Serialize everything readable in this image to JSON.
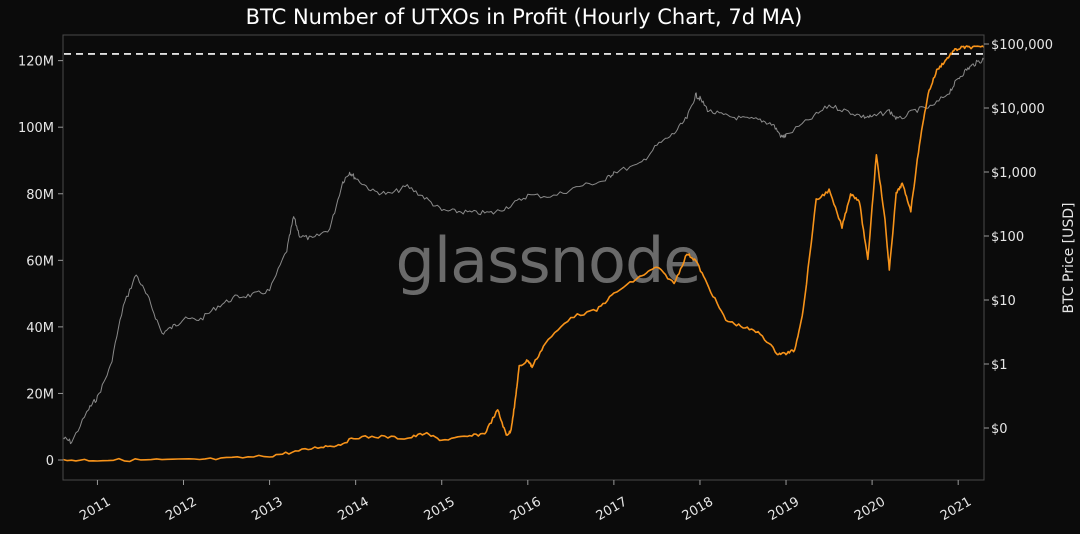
{
  "chart_data": {
    "type": "line",
    "title": "BTC Number of UTXOs in Profit (Hourly Chart, 7d MA)",
    "watermark": "glassnode",
    "xlabel": "",
    "ylabel_left": "",
    "ylabel_right": "BTC Price [USD]",
    "x_ticks": [
      "2011",
      "2012",
      "2013",
      "2014",
      "2015",
      "2016",
      "2017",
      "2018",
      "2019",
      "2020",
      "2021"
    ],
    "x_range": [
      "2010-07",
      "2021-04"
    ],
    "y_left_ticks": [
      "0",
      "20M",
      "40M",
      "60M",
      "80M",
      "100M",
      "120M"
    ],
    "y_left_range_millions": [
      -5,
      128
    ],
    "y_right_ticks": [
      "$0",
      "$1",
      "$10",
      "$100",
      "$1,000",
      "$10,000",
      "$100,000"
    ],
    "y_right_scale": "log",
    "grid": false,
    "reference_line": {
      "value_millions": 122,
      "style": "dashed",
      "color": "#ffffff"
    },
    "colors": {
      "background": "#0b0b0b",
      "frame": "#4a4a4a",
      "price": "#8a8a8a",
      "utxos": "#f7931a"
    },
    "series": [
      {
        "axis": "right",
        "x": [
          2010.6,
          2010.7,
          2010.9,
          2011.0,
          2011.15,
          2011.3,
          2011.45,
          2011.6,
          2011.75,
          2011.9,
          2012.0,
          2012.2,
          2012.4,
          2012.6,
          2012.8,
          2013.0,
          2013.2,
          2013.28,
          2013.35,
          2013.5,
          2013.7,
          2013.85,
          2013.93,
          2014.0,
          2014.2,
          2014.4,
          2014.6,
          2014.8,
          2015.0,
          2015.2,
          2015.4,
          2015.6,
          2015.8,
          2016.0,
          2016.3,
          2016.6,
          2016.9,
          2017.0,
          2017.3,
          2017.5,
          2017.7,
          2017.85,
          2017.95,
          2018.0,
          2018.1,
          2018.3,
          2018.5,
          2018.7,
          2018.85,
          2018.95,
          2019.0,
          2019.3,
          2019.5,
          2019.7,
          2019.9,
          2020.0,
          2020.2,
          2020.3,
          2020.5,
          2020.7,
          2020.9,
          2021.0,
          2021.1,
          2021.2,
          2021.3
        ],
        "y": [
          0.07,
          0.06,
          0.2,
          0.3,
          0.9,
          8,
          25,
          10,
          3,
          4,
          5,
          5,
          8,
          11,
          12,
          14,
          60,
          200,
          100,
          90,
          130,
          700,
          1000,
          800,
          500,
          450,
          600,
          400,
          250,
          240,
          230,
          230,
          300,
          430,
          420,
          600,
          740,
          1000,
          1300,
          2600,
          4000,
          7000,
          16000,
          14000,
          9000,
          7500,
          6800,
          6500,
          5500,
          3500,
          3700,
          7000,
          11000,
          9000,
          7300,
          7200,
          9000,
          6500,
          9200,
          10500,
          18000,
          29000,
          40000,
          50000,
          58000
        ]
      },
      {
        "axis": "left",
        "x": [
          2010.6,
          2011.0,
          2011.5,
          2012.0,
          2012.5,
          2013.0,
          2013.3,
          2013.6,
          2013.8,
          2014.0,
          2014.3,
          2014.6,
          2014.8,
          2015.0,
          2015.3,
          2015.5,
          2015.65,
          2015.75,
          2015.8,
          2015.85,
          2015.9,
          2016.0,
          2016.05,
          2016.2,
          2016.5,
          2016.8,
          2017.0,
          2017.3,
          2017.5,
          2017.7,
          2017.85,
          2017.95,
          2018.1,
          2018.3,
          2018.5,
          2018.7,
          2018.9,
          2019.0,
          2019.1,
          2019.2,
          2019.35,
          2019.5,
          2019.65,
          2019.75,
          2019.85,
          2019.95,
          2020.05,
          2020.15,
          2020.2,
          2020.28,
          2020.35,
          2020.45,
          2020.55,
          2020.65,
          2020.75,
          2020.85,
          2020.95,
          2021.05,
          2021.15,
          2021.3
        ],
        "y": [
          0,
          0,
          0,
          0,
          0.4,
          1.2,
          2.5,
          4,
          4.5,
          6.8,
          7,
          6.5,
          8,
          6,
          7,
          8,
          15,
          7.5,
          8.5,
          17,
          28,
          30,
          28,
          35,
          43,
          45,
          50,
          55,
          58,
          53,
          62,
          60,
          52,
          42,
          40,
          38,
          32,
          32,
          33,
          45,
          78,
          81,
          70,
          80,
          78,
          60,
          92,
          72,
          57,
          80,
          83,
          75,
          95,
          110,
          117,
          120,
          123,
          124,
          124,
          124
        ]
      }
    ]
  }
}
